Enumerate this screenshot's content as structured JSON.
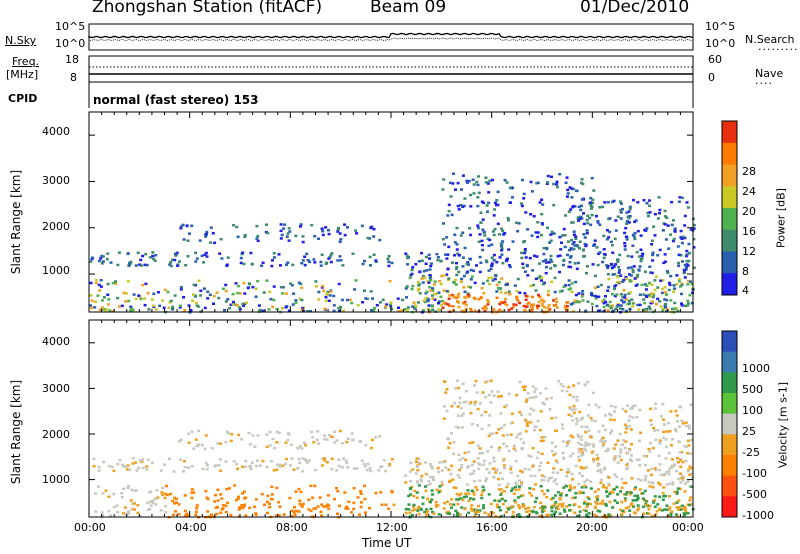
{
  "header": {
    "station": "Zhongshan Station (fitACF)",
    "beam": "Beam 09",
    "date": "01/Dec/2010"
  },
  "top_panels": {
    "nsky_label": "N.Sky",
    "nsearch_label": "N.Search",
    "freq_label": "Freq.",
    "freq_unit": "[MHz]",
    "nave_label": "Nave",
    "cpid_label": "CPID",
    "mode_text": "normal (fast stereo) 153",
    "noise_ticks_left": [
      "10^5",
      "10^0"
    ],
    "noise_ticks_right": [
      "10^5",
      "10^0"
    ],
    "freq_ticks": [
      "18",
      "8"
    ],
    "nave_ticks": [
      "60",
      "0"
    ]
  },
  "chart_data": [
    {
      "type": "heatmap",
      "title": "Power [dB]",
      "ylabel": "Slant Range [km]",
      "ylim": [
        180,
        4500
      ],
      "yticks": [
        "1000",
        "2000",
        "3000",
        "4000"
      ],
      "xlim": [
        "00:00",
        "24:00"
      ],
      "colorbar": {
        "label": "Power [dB]",
        "tick_labels": [
          "4",
          "8",
          "12",
          "16",
          "20",
          "24",
          "28"
        ],
        "colors": [
          "#1f1fe8",
          "#2a5fb0",
          "#3d8a6d",
          "#4fb04f",
          "#c9c925",
          "#f2a023",
          "#ff7a00",
          "#e83010"
        ]
      }
    },
    {
      "type": "heatmap",
      "title": "Velocity [m s-1]",
      "ylabel": "Slant Range [km]",
      "ylim": [
        180,
        4500
      ],
      "yticks": [
        "1000",
        "2000",
        "3000",
        "4000"
      ],
      "xlim": [
        "00:00",
        "24:00"
      ],
      "xlabel": "Time UT",
      "xticks": [
        "00:00",
        "04:00",
        "08:00",
        "12:00",
        "16:00",
        "20:00",
        "00:00"
      ],
      "colorbar": {
        "label": "Velocity [m s-1]",
        "tick_labels": [
          "1000",
          "500",
          "100",
          "25",
          "-25",
          "-100",
          "-500",
          "-1000"
        ],
        "colors": [
          "#2a4fb8",
          "#3a7bb0",
          "#2f9a4a",
          "#5bc23a",
          "#c8c8c0",
          "#f0a020",
          "#ff8000",
          "#ff5010",
          "#ff1a1a"
        ]
      }
    }
  ]
}
